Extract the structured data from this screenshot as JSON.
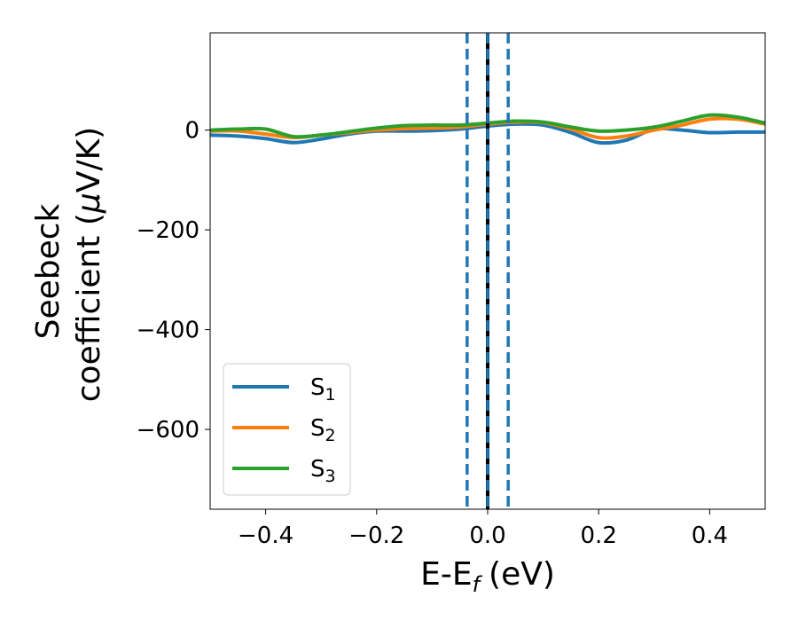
{
  "chart_data": {
    "type": "line",
    "xlabel": "E-E",
    "xlabel_sub": "f",
    "xlabel_unit": "(eV)",
    "ylabel_line1": "Seebeck",
    "ylabel_line2": "coefficient  (",
    "ylabel_mu": "μ",
    "ylabel_unit": "V/K)",
    "xlim": [
      -0.5,
      0.5
    ],
    "ylim": [
      -760,
      195
    ],
    "x_ticks": [
      -0.4,
      -0.2,
      0.0,
      0.2,
      0.4
    ],
    "x_tick_labels": [
      "−0.4",
      "−0.2",
      "0.0",
      "0.2",
      "0.4"
    ],
    "y_ticks": [
      0,
      -200,
      -400,
      -600
    ],
    "y_tick_labels": [
      "0",
      "−200",
      "−400",
      "−600"
    ],
    "grid": false,
    "legend_position": "lower-left",
    "vertical_lines": [
      {
        "x": -0.037,
        "style": "dashed",
        "color": "#1f77b4"
      },
      {
        "x": 0.0,
        "style": "solid",
        "color": "#000000"
      },
      {
        "x": 0.0,
        "style": "dashed",
        "color": "#1f77b4"
      },
      {
        "x": 0.037,
        "style": "dashed",
        "color": "#1f77b4"
      }
    ],
    "series": [
      {
        "name": "S",
        "sub": "1",
        "color": "#1f77b4",
        "x": [
          -0.5,
          -0.45,
          -0.4,
          -0.35,
          -0.3,
          -0.25,
          -0.2,
          -0.15,
          -0.1,
          -0.05,
          0.0,
          0.05,
          0.1,
          0.15,
          0.2,
          0.25,
          0.3,
          0.35,
          0.4,
          0.45,
          0.5
        ],
        "y": [
          -10,
          -12,
          -17,
          -25,
          -18,
          -8,
          -2,
          -2,
          -1,
          2,
          8,
          12,
          10,
          -5,
          -25,
          -20,
          2,
          0,
          -5,
          -4,
          -4
        ]
      },
      {
        "name": "S",
        "sub": "2",
        "color": "#ff7f0e",
        "x": [
          -0.5,
          -0.45,
          -0.4,
          -0.35,
          -0.3,
          -0.25,
          -0.2,
          -0.15,
          -0.1,
          -0.05,
          0.0,
          0.05,
          0.1,
          0.15,
          0.2,
          0.25,
          0.3,
          0.35,
          0.4,
          0.45,
          0.5
        ],
        "y": [
          -2,
          -2,
          -8,
          -15,
          -10,
          -5,
          0,
          3,
          4,
          6,
          12,
          16,
          15,
          2,
          -15,
          -12,
          0,
          10,
          22,
          22,
          12
        ]
      },
      {
        "name": "S",
        "sub": "3",
        "color": "#2ca02c",
        "x": [
          -0.5,
          -0.45,
          -0.4,
          -0.35,
          -0.3,
          -0.25,
          -0.2,
          -0.15,
          -0.1,
          -0.05,
          0.0,
          0.05,
          0.1,
          0.15,
          0.2,
          0.25,
          0.3,
          0.35,
          0.4,
          0.45,
          0.5
        ],
        "y": [
          0,
          2,
          2,
          -13,
          -10,
          -3,
          4,
          9,
          10,
          10,
          14,
          18,
          16,
          6,
          -2,
          0,
          6,
          18,
          30,
          26,
          14
        ]
      }
    ]
  }
}
